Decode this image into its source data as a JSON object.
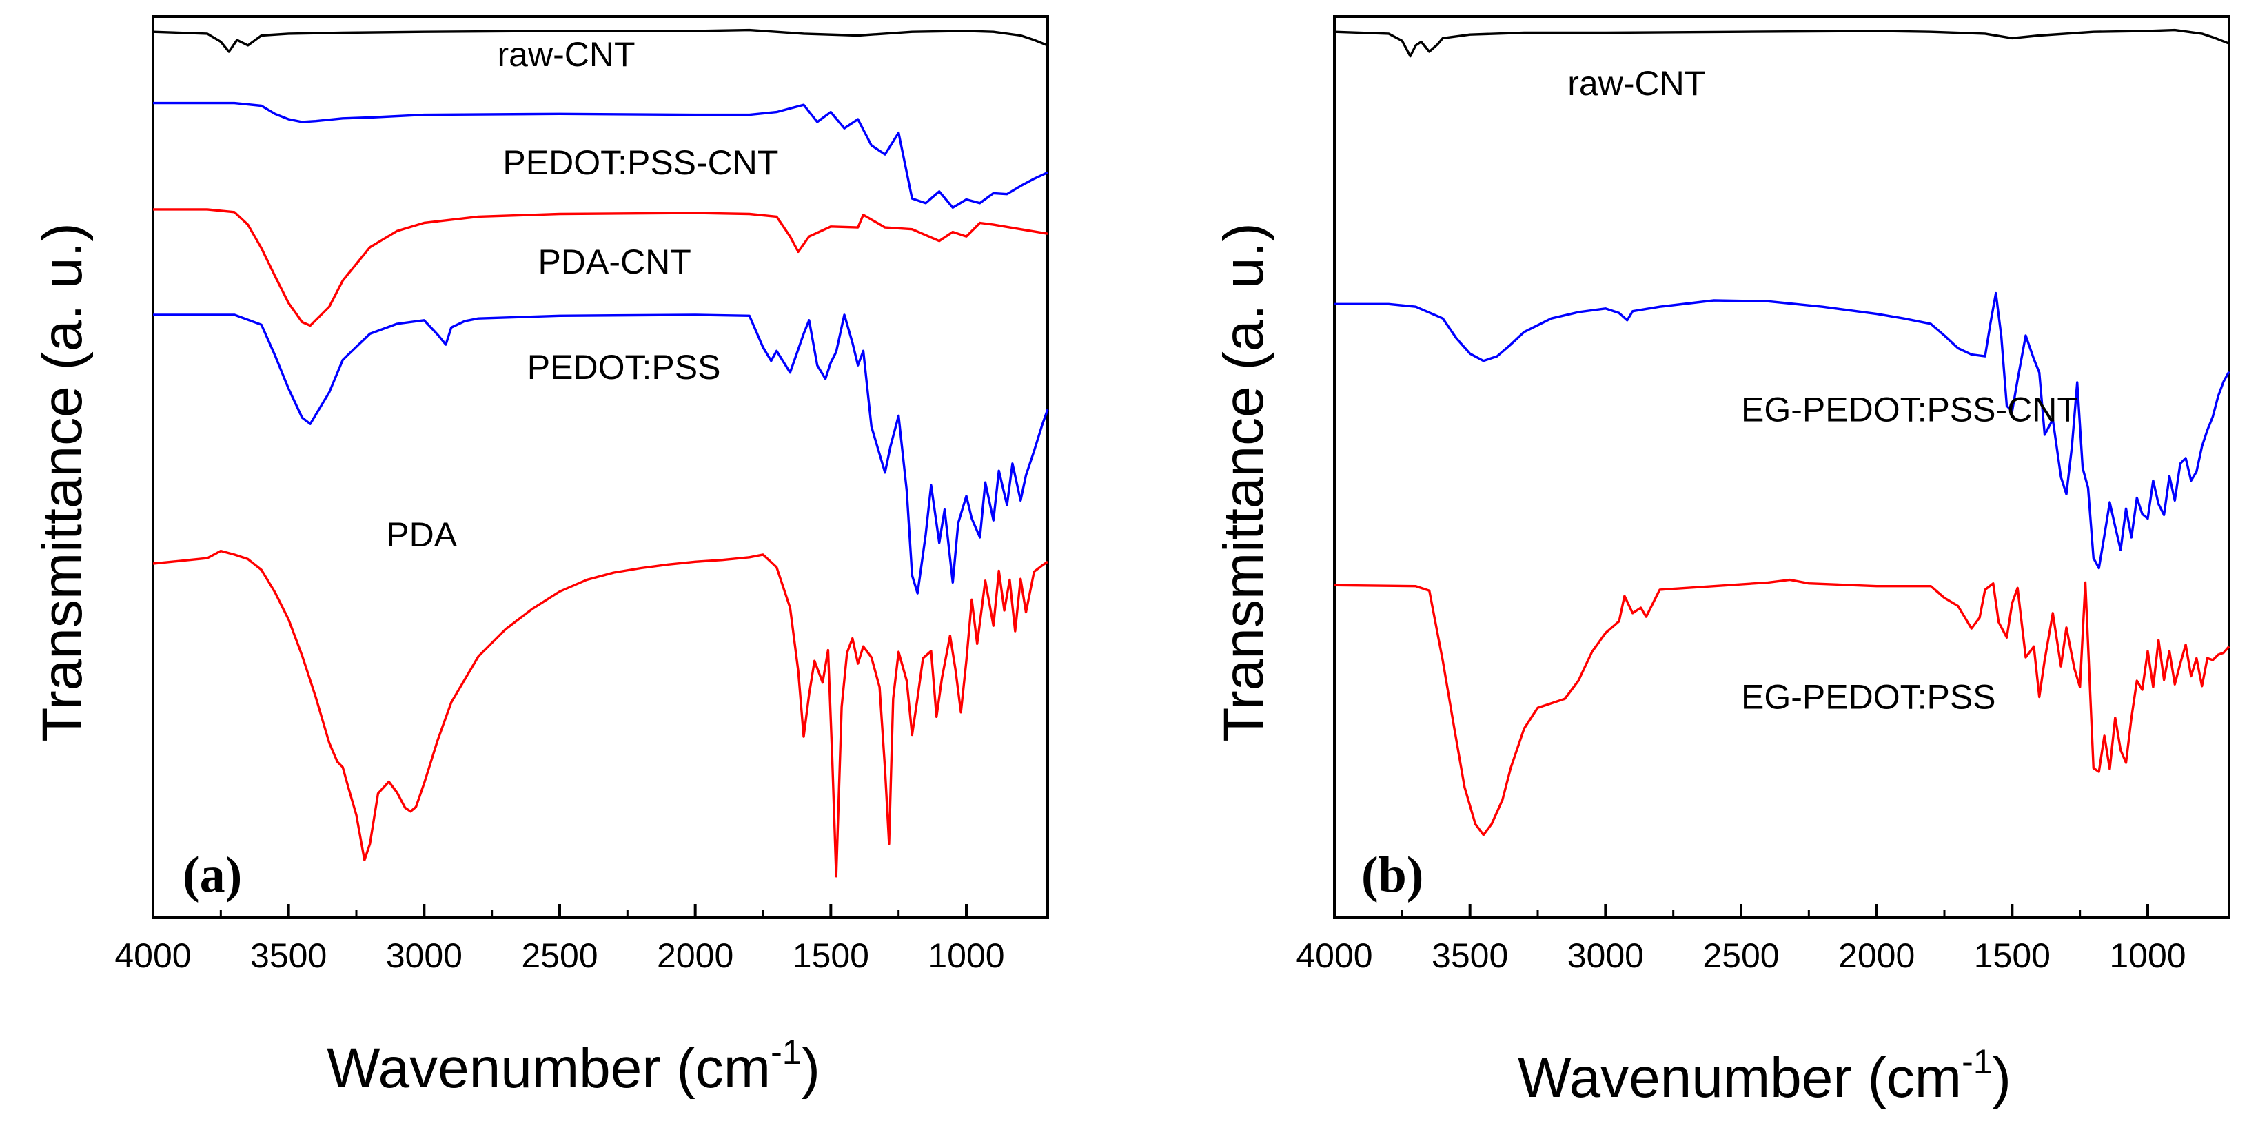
{
  "colors": {
    "raw": "#000000",
    "blue": "#0000ff",
    "red": "#ff0000",
    "axis": "#000000"
  },
  "chart_data": [
    {
      "type": "line",
      "panel_label": "(a)",
      "title": "",
      "xlabel": "Wavenumber (cm",
      "xlabel_sup": "-1",
      "xlabel_close": ")",
      "ylabel": "Transmittance (a. u.)",
      "xlim": [
        4000,
        700
      ],
      "x_ticks": [
        4000,
        3500,
        3000,
        2500,
        2000,
        1500,
        1000
      ],
      "x_tick_labels": [
        "4000",
        "3500",
        "3000",
        "2500",
        "2000",
        "1500",
        "1000"
      ],
      "y_scale": "arbitrary units, vertically offset traces",
      "ylim": [
        0,
        100
      ],
      "series": [
        {
          "name": "raw-CNT",
          "color": "#000000",
          "label_x": 2730,
          "label_y": 94.5,
          "x": [
            4000,
            3800,
            3750,
            3720,
            3690,
            3650,
            3600,
            3500,
            3300,
            3000,
            2500,
            2000,
            1800,
            1600,
            1400,
            1200,
            1000,
            900,
            800,
            750,
            700
          ],
          "y": [
            98.3,
            98.1,
            97.2,
            96.1,
            97.4,
            96.8,
            97.9,
            98.1,
            98.2,
            98.3,
            98.4,
            98.4,
            98.5,
            98.1,
            97.9,
            98.3,
            98.4,
            98.3,
            97.9,
            97.4,
            96.8
          ]
        },
        {
          "name": "PEDOT:PSS-CNT",
          "color": "#0000ff",
          "label_x": 2710,
          "label_y": 82.5,
          "x": [
            4000,
            3700,
            3600,
            3550,
            3500,
            3450,
            3400,
            3300,
            3200,
            3000,
            2500,
            2000,
            1800,
            1700,
            1600,
            1550,
            1500,
            1450,
            1400,
            1350,
            1300,
            1250,
            1200,
            1150,
            1100,
            1050,
            1000,
            950,
            900,
            850,
            800,
            750,
            700
          ],
          "y": [
            90.4,
            90.4,
            90.1,
            89.2,
            88.6,
            88.3,
            88.4,
            88.7,
            88.8,
            89.1,
            89.2,
            89.1,
            89.1,
            89.4,
            90.2,
            88.3,
            89.4,
            87.6,
            88.6,
            85.7,
            84.7,
            87.1,
            79.8,
            79.3,
            80.6,
            78.8,
            79.7,
            79.3,
            80.4,
            80.3,
            81.2,
            82.0,
            82.7
          ]
        },
        {
          "name": "PDA-CNT",
          "color": "#ff0000",
          "label_x": 2580,
          "label_y": 71.5,
          "x": [
            4000,
            3800,
            3700,
            3650,
            3600,
            3550,
            3500,
            3450,
            3420,
            3350,
            3300,
            3200,
            3100,
            3000,
            2800,
            2500,
            2000,
            1800,
            1700,
            1650,
            1620,
            1580,
            1500,
            1400,
            1380,
            1300,
            1200,
            1100,
            1050,
            1000,
            950,
            900,
            800,
            700
          ],
          "y": [
            78.6,
            78.6,
            78.3,
            76.9,
            74.3,
            71.2,
            68.2,
            66.1,
            65.7,
            67.8,
            70.7,
            74.4,
            76.2,
            77.1,
            77.8,
            78.1,
            78.2,
            78.1,
            77.8,
            75.6,
            73.9,
            75.6,
            76.7,
            76.6,
            78.0,
            76.6,
            76.4,
            75.1,
            76.1,
            75.6,
            77.1,
            76.9,
            76.4,
            75.9
          ]
        },
        {
          "name": "PEDOT:PSS",
          "color": "#0000ff",
          "label_x": 2620,
          "label_y": 59.8,
          "x": [
            4000,
            3700,
            3600,
            3550,
            3500,
            3450,
            3420,
            3350,
            3300,
            3200,
            3100,
            3000,
            2950,
            2920,
            2900,
            2850,
            2800,
            2500,
            2000,
            1800,
            1750,
            1720,
            1700,
            1650,
            1600,
            1580,
            1550,
            1520,
            1500,
            1480,
            1450,
            1420,
            1400,
            1380,
            1350,
            1300,
            1280,
            1250,
            1220,
            1200,
            1180,
            1150,
            1130,
            1100,
            1080,
            1050,
            1030,
            1000,
            980,
            950,
            930,
            900,
            880,
            850,
            830,
            800,
            780,
            750,
            720,
            700
          ],
          "y": [
            66.9,
            66.9,
            65.8,
            62.4,
            58.7,
            55.5,
            54.8,
            58.3,
            61.9,
            64.8,
            65.9,
            66.3,
            64.7,
            63.6,
            65.5,
            66.2,
            66.5,
            66.8,
            66.9,
            66.8,
            63.3,
            61.8,
            62.9,
            60.5,
            64.8,
            66.3,
            61.3,
            59.8,
            61.6,
            62.8,
            66.9,
            63.8,
            61.3,
            62.9,
            54.5,
            49.4,
            52.3,
            55.7,
            47.4,
            38.0,
            36.0,
            42.5,
            48.0,
            41.6,
            45.3,
            37.2,
            43.8,
            46.8,
            44.3,
            42.2,
            48.3,
            44.1,
            49.6,
            45.8,
            50.4,
            46.3,
            49.1,
            51.8,
            54.7,
            56.4
          ]
        },
        {
          "name": "PDA",
          "color": "#ff0000",
          "label_x": 3140,
          "label_y": 41.2,
          "x": [
            4000,
            3800,
            3750,
            3700,
            3650,
            3600,
            3550,
            3500,
            3450,
            3400,
            3350,
            3320,
            3300,
            3280,
            3250,
            3220,
            3200,
            3170,
            3130,
            3100,
            3070,
            3050,
            3030,
            3000,
            2950,
            2900,
            2800,
            2700,
            2600,
            2500,
            2400,
            2300,
            2200,
            2100,
            2000,
            1900,
            1800,
            1750,
            1700,
            1650,
            1620,
            1600,
            1580,
            1560,
            1530,
            1510,
            1495,
            1480,
            1460,
            1440,
            1420,
            1400,
            1380,
            1350,
            1320,
            1300,
            1285,
            1270,
            1250,
            1220,
            1200,
            1180,
            1160,
            1130,
            1110,
            1090,
            1060,
            1040,
            1020,
            1000,
            980,
            960,
            930,
            900,
            880,
            860,
            840,
            820,
            800,
            780,
            750,
            720,
            700
          ],
          "y": [
            39.3,
            39.9,
            40.7,
            40.3,
            39.8,
            38.6,
            36.1,
            33.1,
            29.1,
            24.5,
            19.4,
            17.3,
            16.7,
            14.5,
            11.4,
            6.4,
            8.2,
            13.8,
            15.1,
            13.9,
            12.2,
            11.8,
            12.3,
            14.9,
            19.7,
            23.9,
            29.0,
            32.0,
            34.3,
            36.2,
            37.5,
            38.3,
            38.8,
            39.2,
            39.5,
            39.7,
            40.0,
            40.3,
            38.9,
            34.4,
            27.4,
            20.1,
            24.8,
            28.5,
            26.1,
            29.7,
            18.0,
            4.6,
            23.4,
            29.4,
            31.0,
            28.2,
            30.1,
            28.9,
            25.6,
            16.5,
            8.2,
            24.3,
            29.5,
            26.3,
            20.3,
            24.4,
            28.8,
            29.6,
            22.3,
            26.6,
            31.3,
            27.5,
            22.8,
            28.5,
            35.3,
            30.4,
            37.4,
            32.4,
            38.5,
            34.1,
            37.5,
            31.8,
            37.6,
            33.9,
            38.4,
            39.1,
            39.5
          ]
        }
      ]
    },
    {
      "type": "line",
      "panel_label": "(b)",
      "title": "",
      "xlabel": "Wavenumber (cm",
      "xlabel_sup": "-1",
      "xlabel_close": ")",
      "ylabel": "Transmittance (a. u.)",
      "xlim": [
        4000,
        700
      ],
      "x_ticks": [
        4000,
        3500,
        3000,
        2500,
        2000,
        1500,
        1000
      ],
      "x_tick_labels": [
        "4000",
        "3500",
        "3000",
        "2500",
        "2000",
        "1500",
        "1000"
      ],
      "y_scale": "arbitrary units, vertically offset traces",
      "ylim": [
        0,
        100
      ],
      "series": [
        {
          "name": "raw-CNT",
          "color": "#000000",
          "label_x": 3140,
          "label_y": 91.3,
          "x": [
            4000,
            3800,
            3750,
            3720,
            3700,
            3680,
            3650,
            3620,
            3600,
            3500,
            3300,
            3000,
            2500,
            2000,
            1800,
            1600,
            1500,
            1400,
            1200,
            1000,
            900,
            800,
            750,
            700
          ],
          "y": [
            98.3,
            98.1,
            97.3,
            95.6,
            96.8,
            97.2,
            96.1,
            96.9,
            97.6,
            98.0,
            98.2,
            98.2,
            98.3,
            98.4,
            98.3,
            98.1,
            97.6,
            97.9,
            98.3,
            98.4,
            98.5,
            98.1,
            97.6,
            97.0
          ]
        },
        {
          "name": "EG-PEDOT:PSS-CNT",
          "color": "#0000ff",
          "label_x": 2500,
          "label_y": 55.1,
          "x": [
            4000,
            3800,
            3700,
            3600,
            3550,
            3500,
            3450,
            3400,
            3350,
            3300,
            3200,
            3100,
            3000,
            2950,
            2920,
            2900,
            2800,
            2600,
            2400,
            2200,
            2000,
            1900,
            1800,
            1750,
            1700,
            1650,
            1600,
            1580,
            1560,
            1540,
            1520,
            1500,
            1480,
            1450,
            1420,
            1400,
            1380,
            1350,
            1320,
            1300,
            1280,
            1260,
            1240,
            1220,
            1200,
            1180,
            1160,
            1140,
            1120,
            1100,
            1080,
            1060,
            1040,
            1020,
            1000,
            980,
            960,
            940,
            920,
            900,
            880,
            860,
            840,
            820,
            800,
            780,
            760,
            740,
            720,
            700
          ],
          "y": [
            68.1,
            68.1,
            67.8,
            66.5,
            64.3,
            62.6,
            61.8,
            62.3,
            63.6,
            65.0,
            66.5,
            67.2,
            67.6,
            67.1,
            66.3,
            67.3,
            67.8,
            68.5,
            68.4,
            67.8,
            67.0,
            66.5,
            65.9,
            64.6,
            63.2,
            62.5,
            62.3,
            66.0,
            69.3,
            64.5,
            56.8,
            56.2,
            59.7,
            64.6,
            62.0,
            60.5,
            53.6,
            55.3,
            48.9,
            47.0,
            52.2,
            59.4,
            49.9,
            47.7,
            39.9,
            38.8,
            42.4,
            46.1,
            43.4,
            40.8,
            45.4,
            42.2,
            46.6,
            44.8,
            44.3,
            48.5,
            45.9,
            44.7,
            49.0,
            46.3,
            50.4,
            51.0,
            48.5,
            49.5,
            52.3,
            54.1,
            55.6,
            57.9,
            59.5,
            60.6
          ]
        },
        {
          "name": "EG-PEDOT:PSS",
          "color": "#ff0000",
          "label_x": 2500,
          "label_y": 23.2,
          "x": [
            4000,
            3700,
            3650,
            3600,
            3560,
            3520,
            3480,
            3450,
            3420,
            3380,
            3350,
            3300,
            3250,
            3200,
            3150,
            3100,
            3050,
            3000,
            2950,
            2930,
            2900,
            2870,
            2850,
            2800,
            2600,
            2400,
            2320,
            2250,
            2000,
            1800,
            1750,
            1700,
            1650,
            1620,
            1600,
            1570,
            1550,
            1520,
            1500,
            1480,
            1450,
            1420,
            1400,
            1380,
            1350,
            1320,
            1300,
            1270,
            1250,
            1230,
            1200,
            1180,
            1160,
            1140,
            1120,
            1100,
            1080,
            1060,
            1040,
            1020,
            1000,
            980,
            960,
            940,
            920,
            900,
            880,
            860,
            840,
            820,
            800,
            780,
            760,
            740,
            720,
            700
          ],
          "y": [
            36.9,
            36.8,
            36.3,
            28.5,
            21.4,
            14.5,
            10.4,
            9.2,
            10.4,
            13.1,
            16.6,
            21.0,
            23.3,
            23.8,
            24.3,
            26.3,
            29.5,
            31.6,
            32.9,
            35.7,
            33.8,
            34.4,
            33.4,
            36.4,
            36.8,
            37.2,
            37.5,
            37.1,
            36.8,
            36.8,
            35.5,
            34.6,
            32.1,
            33.3,
            36.4,
            37.1,
            32.8,
            31.1,
            34.9,
            36.6,
            28.9,
            30.1,
            24.5,
            28.6,
            33.8,
            27.9,
            32.2,
            27.6,
            25.6,
            37.2,
            16.6,
            16.2,
            20.2,
            16.5,
            22.2,
            18.6,
            17.2,
            22.2,
            26.3,
            25.3,
            29.6,
            25.6,
            30.8,
            26.4,
            29.6,
            25.9,
            28.2,
            30.3,
            26.8,
            28.8,
            25.7,
            28.8,
            28.6,
            29.2,
            29.4,
            30.1
          ]
        }
      ]
    }
  ]
}
